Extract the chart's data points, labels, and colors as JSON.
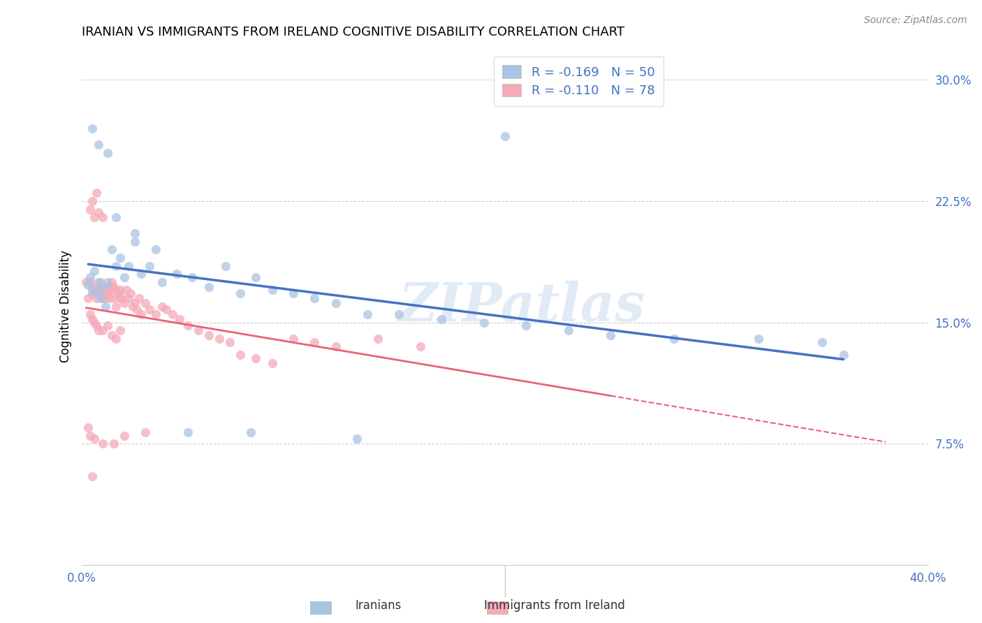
{
  "title": "IRANIAN VS IMMIGRANTS FROM IRELAND COGNITIVE DISABILITY CORRELATION CHART",
  "source": "Source: ZipAtlas.com",
  "ylabel": "Cognitive Disability",
  "xlim": [
    0.0,
    0.4
  ],
  "ylim": [
    0.0,
    0.32
  ],
  "xtick_positions": [
    0.0,
    0.08,
    0.16,
    0.24,
    0.32,
    0.4
  ],
  "xticklabels": [
    "0.0%",
    "",
    "",
    "",
    "",
    "40.0%"
  ],
  "yticks_right": [
    0.075,
    0.15,
    0.225,
    0.3
  ],
  "ytick_labels_right": [
    "7.5%",
    "15.0%",
    "22.5%",
    "30.0%"
  ],
  "legend_label1_r": "-0.169",
  "legend_label1_n": "50",
  "legend_label2_r": "-0.110",
  "legend_label2_n": "78",
  "color_iranians": "#aac4e2",
  "color_ireland": "#f5aab8",
  "color_line_iranians": "#4472c4",
  "color_line_ireland": "#e8637a",
  "watermark": "ZIPatlas",
  "scatter_iranians_x": [
    0.003,
    0.004,
    0.005,
    0.006,
    0.007,
    0.008,
    0.009,
    0.01,
    0.011,
    0.012,
    0.014,
    0.016,
    0.018,
    0.02,
    0.022,
    0.025,
    0.028,
    0.032,
    0.038,
    0.045,
    0.052,
    0.06,
    0.068,
    0.075,
    0.082,
    0.09,
    0.1,
    0.11,
    0.12,
    0.135,
    0.15,
    0.17,
    0.19,
    0.21,
    0.23,
    0.25,
    0.28,
    0.32,
    0.35,
    0.36,
    0.005,
    0.008,
    0.012,
    0.016,
    0.025,
    0.035,
    0.05,
    0.08,
    0.13,
    0.2
  ],
  "scatter_iranians_y": [
    0.173,
    0.178,
    0.17,
    0.182,
    0.168,
    0.175,
    0.165,
    0.172,
    0.16,
    0.175,
    0.195,
    0.185,
    0.19,
    0.178,
    0.185,
    0.2,
    0.18,
    0.185,
    0.175,
    0.18,
    0.178,
    0.172,
    0.185,
    0.168,
    0.178,
    0.17,
    0.168,
    0.165,
    0.162,
    0.155,
    0.155,
    0.152,
    0.15,
    0.148,
    0.145,
    0.142,
    0.14,
    0.14,
    0.138,
    0.13,
    0.27,
    0.26,
    0.255,
    0.215,
    0.205,
    0.195,
    0.082,
    0.082,
    0.078,
    0.265
  ],
  "scatter_ireland_x": [
    0.002,
    0.003,
    0.004,
    0.004,
    0.005,
    0.005,
    0.006,
    0.006,
    0.007,
    0.007,
    0.008,
    0.008,
    0.009,
    0.009,
    0.01,
    0.01,
    0.011,
    0.011,
    0.012,
    0.012,
    0.013,
    0.013,
    0.014,
    0.015,
    0.015,
    0.016,
    0.016,
    0.017,
    0.018,
    0.018,
    0.019,
    0.02,
    0.021,
    0.022,
    0.023,
    0.024,
    0.025,
    0.026,
    0.027,
    0.028,
    0.03,
    0.032,
    0.035,
    0.038,
    0.04,
    0.043,
    0.046,
    0.05,
    0.055,
    0.06,
    0.065,
    0.07,
    0.075,
    0.082,
    0.09,
    0.1,
    0.11,
    0.12,
    0.14,
    0.16,
    0.004,
    0.005,
    0.006,
    0.007,
    0.008,
    0.01,
    0.012,
    0.014,
    0.016,
    0.018,
    0.003,
    0.004,
    0.005,
    0.006,
    0.01,
    0.015,
    0.02,
    0.03
  ],
  "scatter_ireland_y": [
    0.175,
    0.165,
    0.22,
    0.175,
    0.168,
    0.225,
    0.172,
    0.215,
    0.165,
    0.23,
    0.17,
    0.218,
    0.168,
    0.175,
    0.165,
    0.215,
    0.17,
    0.165,
    0.168,
    0.172,
    0.17,
    0.165,
    0.175,
    0.165,
    0.172,
    0.17,
    0.16,
    0.168,
    0.165,
    0.17,
    0.165,
    0.162,
    0.17,
    0.165,
    0.168,
    0.16,
    0.162,
    0.158,
    0.165,
    0.155,
    0.162,
    0.158,
    0.155,
    0.16,
    0.158,
    0.155,
    0.152,
    0.148,
    0.145,
    0.142,
    0.14,
    0.138,
    0.13,
    0.128,
    0.125,
    0.14,
    0.138,
    0.135,
    0.14,
    0.135,
    0.155,
    0.152,
    0.15,
    0.148,
    0.145,
    0.145,
    0.148,
    0.142,
    0.14,
    0.145,
    0.085,
    0.08,
    0.055,
    0.078,
    0.075,
    0.075,
    0.08,
    0.082
  ]
}
